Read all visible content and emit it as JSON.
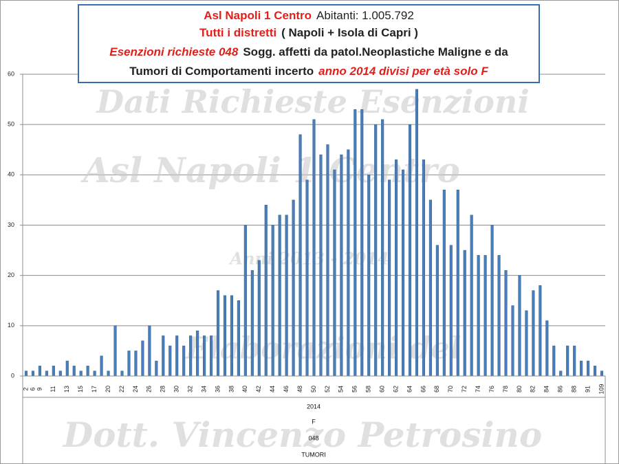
{
  "chart_data": {
    "type": "bar",
    "title_lines": [
      [
        "Asl Napoli 1 Centro",
        "Abitanti: 1.005.792"
      ],
      [
        "Tutti i distretti",
        "( Napoli + Isola di Capri )"
      ],
      [
        "Esenzioni richieste 048",
        "Sogg. affetti da patol.Neoplastiche Maligne e da"
      ],
      [
        "Tumori di Comportamenti incerto",
        "anno 2014 divisi per età solo F"
      ]
    ],
    "watermarks": [
      "Dati Richieste Esenzioni",
      "Asl Napoli 1 Centro",
      "Anni 2013 - 2014",
      "Elaborazioni del",
      "Dott. Vincenzo Petrosino"
    ],
    "categories": [
      "2",
      "6",
      "9",
      null,
      "11",
      null,
      "13",
      null,
      "15",
      null,
      "17",
      null,
      "20",
      null,
      "22",
      null,
      "24",
      null,
      "26",
      null,
      "28",
      null,
      "30",
      null,
      "32",
      null,
      "34",
      null,
      "36",
      null,
      "38",
      null,
      "40",
      null,
      "42",
      null,
      "44",
      null,
      "46",
      null,
      "48",
      null,
      "50",
      null,
      "52",
      null,
      "54",
      null,
      "56",
      null,
      "58",
      null,
      "60",
      null,
      "62",
      null,
      "64",
      null,
      "66",
      null,
      "68",
      null,
      "70",
      null,
      "72",
      null,
      "74",
      null,
      "76",
      null,
      "78",
      null,
      "80",
      null,
      "82",
      null,
      "84",
      null,
      "86",
      null,
      "88",
      null,
      "91",
      null,
      "109"
    ],
    "values": [
      1,
      1,
      2,
      1,
      2,
      1,
      3,
      2,
      1,
      2,
      1,
      4,
      1,
      10,
      1,
      5,
      5,
      7,
      10,
      3,
      8,
      6,
      8,
      6,
      8,
      9,
      8,
      8,
      17,
      16,
      16,
      15,
      30,
      21,
      23,
      34,
      30,
      32,
      32,
      35,
      48,
      39,
      51,
      44,
      46,
      41,
      44,
      45,
      53,
      53,
      40,
      50,
      51,
      39,
      43,
      41,
      50,
      57,
      43,
      35,
      26,
      37,
      26,
      37,
      25,
      32,
      24,
      24,
      30,
      24,
      21,
      14,
      20,
      13,
      17,
      18,
      11,
      6,
      1,
      6,
      6,
      3,
      3,
      2,
      1
    ],
    "color": "#4a7ebb",
    "category_levels": [
      "2014",
      "F",
      "048",
      "TUMORI"
    ],
    "ylim": [
      0,
      60
    ],
    "yticks": [
      0,
      10,
      20,
      30,
      40,
      50,
      60
    ],
    "grid": true
  }
}
